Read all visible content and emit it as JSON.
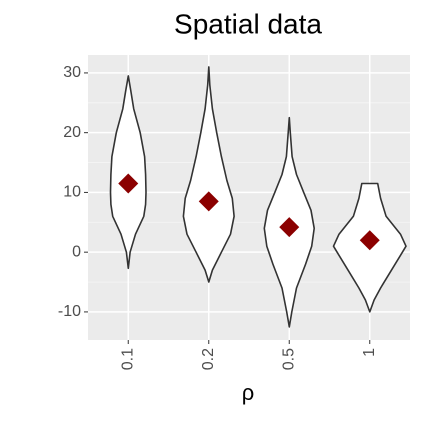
{
  "chart_data": {
    "type": "violin",
    "title": "Spatial data",
    "x_label": "ρ",
    "categories": [
      "0.1",
      "0.2",
      "0.5",
      "1"
    ],
    "ylim": [
      -14.7,
      33
    ],
    "yticks": [
      -10,
      0,
      10,
      20,
      30
    ],
    "grid": true,
    "fill": "#ffffff",
    "outline_color": "#333333",
    "mean_color": "#8b0000",
    "violins": [
      {
        "y": [
          -2.7,
          0,
          3,
          6,
          8,
          10,
          13,
          16,
          20,
          24,
          27,
          29.5
        ],
        "density": [
          0,
          0.05,
          0.2,
          0.43,
          0.48,
          0.49,
          0.48,
          0.45,
          0.33,
          0.15,
          0.07,
          0
        ]
      },
      {
        "y": [
          -5,
          -3,
          0,
          3,
          6,
          9,
          12,
          16,
          20,
          24,
          28,
          31
        ],
        "density": [
          0,
          0.1,
          0.35,
          0.6,
          0.7,
          0.65,
          0.5,
          0.35,
          0.22,
          0.1,
          0.03,
          0
        ]
      },
      {
        "y": [
          -12.5,
          -10,
          -6,
          -2,
          1,
          4,
          7,
          10,
          13,
          16,
          20,
          22.5
        ],
        "density": [
          0,
          0.07,
          0.2,
          0.45,
          0.62,
          0.69,
          0.6,
          0.4,
          0.2,
          0.08,
          0.03,
          0
        ]
      },
      {
        "y": [
          -10,
          -8,
          -6,
          -3,
          0,
          1,
          3,
          6,
          9,
          11.5
        ],
        "density": [
          0,
          0.12,
          0.3,
          0.6,
          0.9,
          1.0,
          0.85,
          0.45,
          0.3,
          0.22
        ]
      }
    ],
    "means": [
      11.5,
      8.5,
      4.2,
      2.0
    ]
  }
}
